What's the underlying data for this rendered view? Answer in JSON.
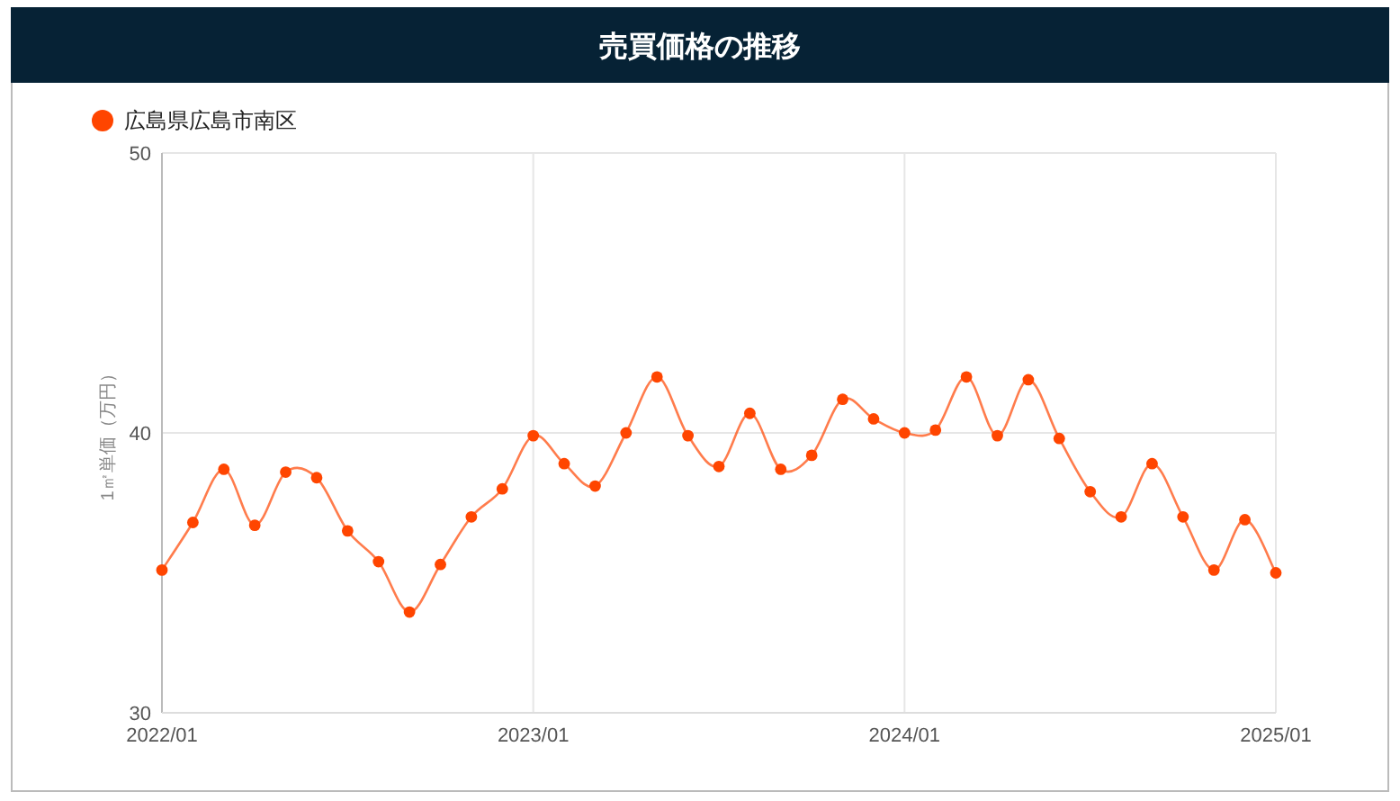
{
  "chart_data": {
    "type": "line",
    "title": "売買価格の推移",
    "ylabel": "1㎡単価（万円）",
    "x": [
      "2022-01",
      "2022-02",
      "2022-03",
      "2022-04",
      "2022-05",
      "2022-06",
      "2022-07",
      "2022-08",
      "2022-09",
      "2022-10",
      "2022-11",
      "2022-12",
      "2023-01",
      "2023-02",
      "2023-03",
      "2023-04",
      "2023-05",
      "2023-06",
      "2023-07",
      "2023-08",
      "2023-09",
      "2023-10",
      "2023-11",
      "2023-12",
      "2024-01",
      "2024-02",
      "2024-03",
      "2024-04",
      "2024-05",
      "2024-06",
      "2024-07",
      "2024-08",
      "2024-09",
      "2024-10",
      "2024-11",
      "2024-12",
      "2025-01"
    ],
    "series": [
      {
        "name": "広島県広島市南区",
        "color": "#ff4500",
        "values": [
          35.1,
          36.8,
          38.7,
          36.7,
          38.6,
          38.4,
          36.5,
          35.4,
          33.6,
          35.3,
          37.0,
          38.0,
          39.9,
          38.9,
          38.1,
          40.0,
          42.0,
          39.9,
          38.8,
          40.7,
          38.7,
          39.2,
          41.2,
          40.5,
          40.0,
          40.1,
          42.0,
          39.9,
          41.9,
          39.8,
          37.9,
          37.0,
          38.9,
          37.0,
          35.1,
          36.9,
          35.0
        ]
      }
    ],
    "xlim": [
      "2022-01",
      "2025-01"
    ],
    "xticks": [
      {
        "value": "2022-01",
        "label": "2022/01"
      },
      {
        "value": "2023-01",
        "label": "2023/01"
      },
      {
        "value": "2024-01",
        "label": "2024/01"
      },
      {
        "value": "2025-01",
        "label": "2025/01"
      }
    ],
    "ylim": [
      30,
      50
    ],
    "yticks": [
      30,
      40,
      50
    ],
    "grid": true,
    "legend": "top left",
    "marker": "circle",
    "line_style": "solid"
  }
}
